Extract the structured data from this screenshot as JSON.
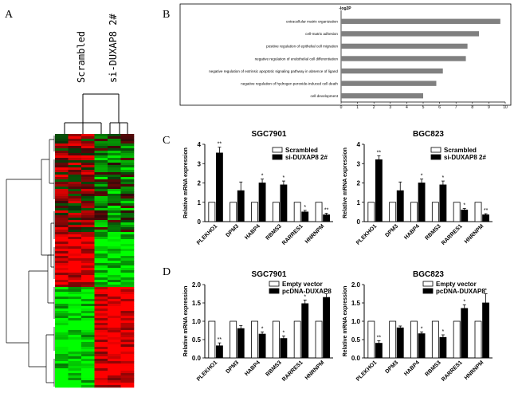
{
  "panels": {
    "A": {
      "letter": "A",
      "col_labels": [
        "Scrambled",
        "si-DUXAP8 2#"
      ],
      "colors": {
        "up": "#ff2020",
        "down": "#20e020",
        "mid": "#000000"
      }
    },
    "B": {
      "letter": "B"
    },
    "C": {
      "letter": "C"
    },
    "D": {
      "letter": "D"
    }
  },
  "chart_data": [
    {
      "id": "B",
      "type": "bar",
      "orientation": "horizontal",
      "title": "-log2P",
      "categories": [
        "extracellular matrix organization",
        "cell-matrix adhesion",
        "positive regulation of epithelial cell migration",
        "negative regulation of endothelial cell differentiation",
        "negative regulation of extrinsic apoptotic signaling pathway in absence of ligand",
        "negative regulation of hydrogen peroxide-induced cell death",
        "cell development"
      ],
      "values": [
        9.7,
        8.4,
        7.7,
        7.6,
        6.2,
        5.8,
        5.0
      ],
      "xlim": [
        0,
        10
      ],
      "xticks": [
        "0",
        "1",
        "2",
        "3",
        "4",
        "5",
        "6",
        "7",
        "8",
        "9",
        "10"
      ],
      "bar_color": "#808080"
    },
    {
      "id": "C-SGC7901",
      "type": "bar",
      "title": "SGC7901",
      "ylabel": "Relative mRNA expression",
      "ylim": [
        0,
        4
      ],
      "yticks": [
        "0",
        "1",
        "2",
        "3",
        "4"
      ],
      "categories": [
        "PLEKHO1",
        "DPM3",
        "HABP4",
        "RBMS3",
        "RARRES1",
        "HNRNPM"
      ],
      "series": [
        {
          "name": "Scrambled",
          "values": [
            1,
            1,
            1,
            1,
            1,
            1
          ],
          "errors": [
            0,
            0,
            0,
            0,
            0,
            0
          ],
          "fill": "#ffffff"
        },
        {
          "name": "si-DUXAP8 2#",
          "values": [
            3.55,
            1.6,
            2.0,
            1.9,
            0.5,
            0.35
          ],
          "errors": [
            0.3,
            0.45,
            0.2,
            0.2,
            0.08,
            0.08
          ],
          "fill": "#000000"
        }
      ],
      "annotations": [
        "**",
        "",
        "*",
        "*",
        "*",
        "**"
      ]
    },
    {
      "id": "C-BGC823",
      "type": "bar",
      "title": "BGC823",
      "ylabel": "Relative mRNA expression",
      "ylim": [
        0,
        4
      ],
      "yticks": [
        "0",
        "1",
        "2",
        "3",
        "4"
      ],
      "categories": [
        "PLEKHO1",
        "DPM3",
        "HABP4",
        "RBMS3",
        "RARRES1",
        "HNRNPM"
      ],
      "series": [
        {
          "name": "Scrambled",
          "values": [
            1,
            1,
            1,
            1,
            1,
            1
          ],
          "errors": [
            0,
            0,
            0,
            0,
            0,
            0
          ],
          "fill": "#ffffff"
        },
        {
          "name": "si-DUXAP8 2#",
          "values": [
            3.2,
            1.6,
            2.0,
            1.9,
            0.6,
            0.35
          ],
          "errors": [
            0.2,
            0.45,
            0.2,
            0.2,
            0.08,
            0.06
          ],
          "fill": "#000000"
        }
      ],
      "annotations": [
        "**",
        "",
        "*",
        "*",
        "*",
        "**"
      ]
    },
    {
      "id": "D-SGC7901",
      "type": "bar",
      "title": "SGC7901",
      "ylabel": "Relative mRNA expression",
      "ylim": [
        0,
        2
      ],
      "yticks": [
        "0.0",
        "0.5",
        "1.0",
        "1.5",
        "2.0"
      ],
      "categories": [
        "PLEKHO1",
        "DPM3",
        "HABP4",
        "RBMS3",
        "RARRES1",
        "HNRNPM"
      ],
      "series": [
        {
          "name": "Empty vector",
          "values": [
            1,
            1,
            1,
            1,
            1,
            1
          ],
          "errors": [
            0,
            0,
            0,
            0,
            0,
            0
          ],
          "fill": "#ffffff"
        },
        {
          "name": "pcDNA-DUXAP8",
          "values": [
            0.33,
            0.8,
            0.65,
            0.53,
            1.48,
            1.65
          ],
          "errors": [
            0.08,
            0.08,
            0.06,
            0.07,
            0.1,
            0.1
          ],
          "fill": "#000000"
        }
      ],
      "annotations": [
        "**",
        "",
        "*",
        "*",
        "*",
        "*"
      ]
    },
    {
      "id": "D-BGC823",
      "type": "bar",
      "title": "BGC823",
      "ylabel": "Relative mRNA expression",
      "ylim": [
        0,
        2
      ],
      "yticks": [
        "0.0",
        "0.5",
        "1.0",
        "1.5",
        "2.0"
      ],
      "categories": [
        "PLEKHO1",
        "DPM3",
        "HABP4",
        "RBMS3",
        "RARRES1",
        "HNRNPM"
      ],
      "series": [
        {
          "name": "Empty vector",
          "values": [
            1,
            1,
            1,
            1,
            1,
            1
          ],
          "errors": [
            0,
            0,
            0,
            0,
            0,
            0
          ],
          "fill": "#ffffff"
        },
        {
          "name": "pcDNA-DUXAP8",
          "values": [
            0.4,
            0.82,
            0.66,
            0.56,
            1.35,
            1.5
          ],
          "errors": [
            0.07,
            0.05,
            0.05,
            0.07,
            0.1,
            0.25
          ],
          "fill": "#000000"
        }
      ],
      "annotations": [
        "**",
        "",
        "*",
        "*",
        "*",
        "*"
      ]
    }
  ]
}
